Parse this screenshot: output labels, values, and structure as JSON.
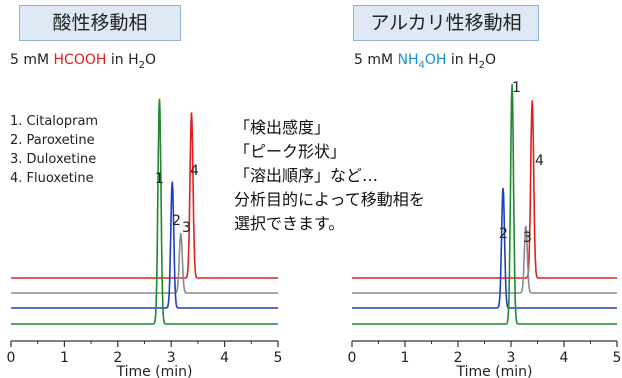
{
  "panels": [
    {
      "title": "酸性移動相",
      "condition": {
        "prefix": "5 mM ",
        "modifier": "HCOOH",
        "modifier_sub": "",
        "modifier_tail": "",
        "suffix": " in H",
        "water_sub": "2",
        "water_tail": "O"
      },
      "modifier_color": "#e11f1f"
    },
    {
      "title": "アルカリ性移動相",
      "condition": {
        "prefix": "5 mM ",
        "modifier": "NH",
        "modifier_sub": "4",
        "modifier_tail": "OH",
        "suffix": " in H",
        "water_sub": "2",
        "water_tail": "O"
      },
      "modifier_color": "#1b8fd6"
    }
  ],
  "legend": [
    "1. Citalopram",
    "2. Paroxetine",
    "3. Duloxetine",
    "4. Fluoxetine"
  ],
  "note_lines": [
    "「検出感度」",
    "「ピーク形状」",
    "「溶出順序」など…",
    "分析目的によって移動相を",
    "選択できます。"
  ],
  "chart_data": [
    {
      "type": "line",
      "title": "酸性移動相",
      "xlabel": "Time (min)",
      "ylabel": "",
      "xlim": [
        0,
        5
      ],
      "xticks": [
        0,
        1,
        2,
        3,
        4,
        5
      ],
      "grid": false,
      "series": [
        {
          "name": "4",
          "color": "#e0201f",
          "peak_time": 3.38,
          "peak_height": 0.72
        },
        {
          "name": "3",
          "color": "#8a8a8a",
          "peak_time": 3.18,
          "peak_height": 0.26
        },
        {
          "name": "2",
          "color": "#1f3fbf",
          "peak_time": 3.02,
          "peak_height": 0.55
        },
        {
          "name": "1",
          "color": "#1e8a2e",
          "peak_time": 2.78,
          "peak_height": 0.98
        }
      ],
      "peak_labels": [
        "1",
        "2",
        "3",
        "4"
      ]
    },
    {
      "type": "line",
      "title": "アルカリ性移動相",
      "xlabel": "Time (min)",
      "ylabel": "",
      "xlim": [
        0,
        5
      ],
      "xticks": [
        0,
        1,
        2,
        3,
        4,
        5
      ],
      "grid": false,
      "series": [
        {
          "name": "4",
          "color": "#e0201f",
          "peak_time": 3.4,
          "peak_height": 0.74
        },
        {
          "name": "3",
          "color": "#8a8a8a",
          "peak_time": 3.28,
          "peak_height": 0.28
        },
        {
          "name": "2",
          "color": "#1f3fbf",
          "peak_time": 2.85,
          "peak_height": 0.5
        },
        {
          "name": "1",
          "color": "#1e8a2e",
          "peak_time": 3.02,
          "peak_height": 1.0
        }
      ],
      "peak_labels": [
        "1",
        "2",
        "3",
        "4"
      ]
    }
  ]
}
